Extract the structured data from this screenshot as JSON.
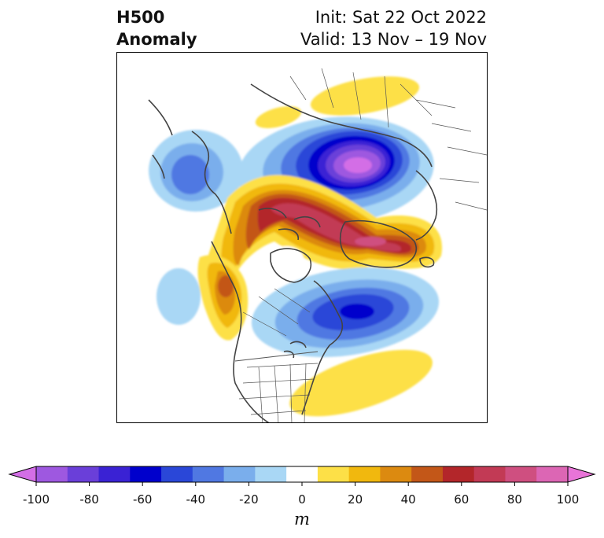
{
  "title": {
    "left_line1": "H500",
    "left_line2": "Anomaly",
    "right_line1": "Init: Sat 22 Oct 2022",
    "right_line2": "Valid: 13 Nov – 19 Nov"
  },
  "colorbar": {
    "unit": "m",
    "tick_labels": [
      "-100",
      "-80",
      "-60",
      "-40",
      "-20",
      "0",
      "20",
      "40",
      "60",
      "80",
      "100"
    ],
    "colors": [
      "#d36ee6",
      "#9e58e0",
      "#6a3fd9",
      "#3a22d4",
      "#0000cc",
      "#2a47d8",
      "#5078e2",
      "#7aaeec",
      "#a9d7f5",
      "#ffffff",
      "#fde047",
      "#f1b80e",
      "#dc8a10",
      "#c35718",
      "#b3262a",
      "#c23a55",
      "#cf4f80",
      "#dc66b4",
      "#e874d8"
    ],
    "min": -100,
    "max": 100,
    "extend": "both"
  },
  "colors": {
    "coast": "#444444",
    "frame": "#000000"
  }
}
